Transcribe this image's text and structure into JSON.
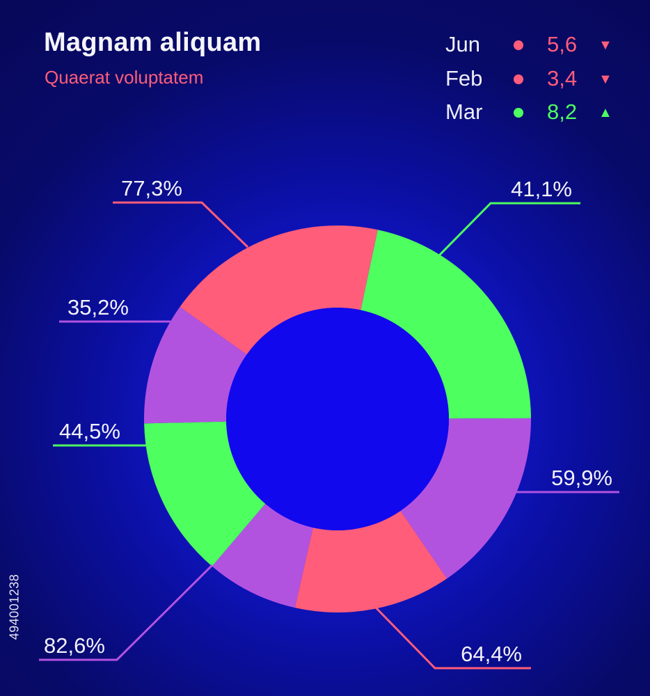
{
  "chart_data": {
    "type": "donut",
    "title": "Magnam aliquam",
    "subtitle": "Quaerat voluptatem",
    "subtitle_color": "#ff5d7a",
    "slices": [
      {
        "label": "41,1%",
        "percent": 21.6,
        "color": "#4dff5f"
      },
      {
        "label": "59,9%",
        "percent": 15.5,
        "color": "#b253e0"
      },
      {
        "label": "64,4%",
        "percent": 13.1,
        "color": "#ff5d7a"
      },
      {
        "label": "82,6%",
        "percent": 7.7,
        "color": "#b253e0"
      },
      {
        "label": "44,5%",
        "percent": 13.4,
        "color": "#4dff5f"
      },
      {
        "label": "35,2%",
        "percent": 10.2,
        "color": "#b253e0"
      },
      {
        "label": "77,3%",
        "percent": 18.5,
        "color": "#ff5d7a"
      }
    ],
    "legend": [
      {
        "month": "Jun",
        "value": "5,6",
        "trend": "down",
        "color": "#ff5d7a"
      },
      {
        "month": "Feb",
        "value": "3,4",
        "trend": "down",
        "color": "#ff5d7a"
      },
      {
        "month": "Mar",
        "value": "8,2",
        "trend": "up",
        "color": "#4dff5f"
      }
    ]
  },
  "watermark_id": "494001238"
}
